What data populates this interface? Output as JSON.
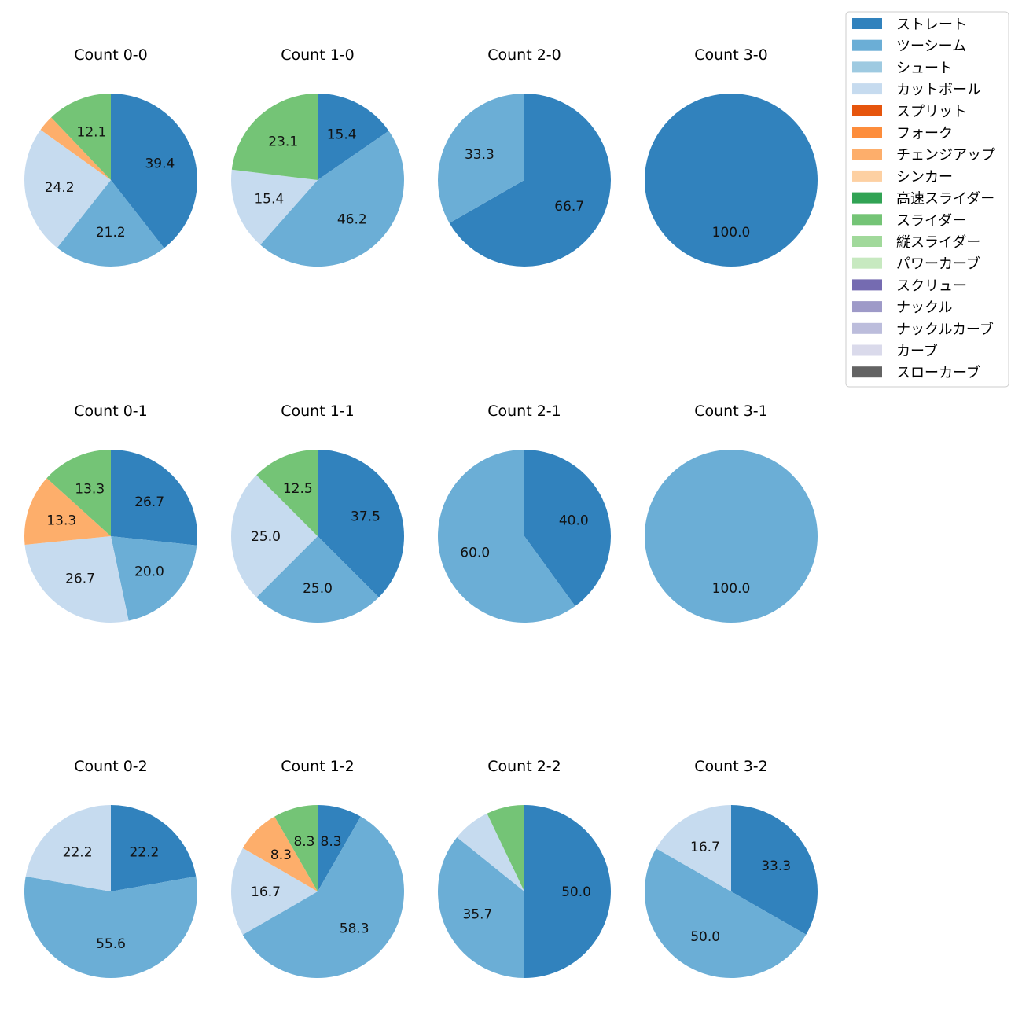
{
  "chart_data": {
    "type": "pie",
    "legend": {
      "placement": "top-right",
      "entries": [
        {
          "name": "ストレート",
          "color": "#3182bd"
        },
        {
          "name": "ツーシーム",
          "color": "#6baed6"
        },
        {
          "name": "シュート",
          "color": "#9ecae1"
        },
        {
          "name": "カットボール",
          "color": "#c6dbef"
        },
        {
          "name": "スプリット",
          "color": "#e6550d"
        },
        {
          "name": "フォーク",
          "color": "#fd8d3c"
        },
        {
          "name": "チェンジアップ",
          "color": "#fdae6b"
        },
        {
          "name": "シンカー",
          "color": "#fdd0a2"
        },
        {
          "name": "高速スライダー",
          "color": "#31a354"
        },
        {
          "name": "スライダー",
          "color": "#74c476"
        },
        {
          "name": "縦スライダー",
          "color": "#a1d99b"
        },
        {
          "name": "パワーカーブ",
          "color": "#c7e9c0"
        },
        {
          "name": "スクリュー",
          "color": "#756bb1"
        },
        {
          "name": "ナックル",
          "color": "#9e9ac8"
        },
        {
          "name": "ナックルカーブ",
          "color": "#bcbddc"
        },
        {
          "name": "カーブ",
          "color": "#dadaeb"
        },
        {
          "name": "スローカーブ",
          "color": "#636363"
        }
      ]
    },
    "pies": [
      {
        "title": "Count 0-0",
        "slices": [
          {
            "name": "ストレート",
            "value": 39.4,
            "label": "39.4"
          },
          {
            "name": "ツーシーム",
            "value": 21.2,
            "label": "21.2"
          },
          {
            "name": "カットボール",
            "value": 24.2,
            "label": "24.2"
          },
          {
            "name": "チェンジアップ",
            "value": 3.0,
            "label": ""
          },
          {
            "name": "スライダー",
            "value": 12.1,
            "label": "12.1"
          }
        ]
      },
      {
        "title": "Count 1-0",
        "slices": [
          {
            "name": "ストレート",
            "value": 15.4,
            "label": "15.4"
          },
          {
            "name": "ツーシーム",
            "value": 46.2,
            "label": "46.2"
          },
          {
            "name": "カットボール",
            "value": 15.4,
            "label": "15.4"
          },
          {
            "name": "スライダー",
            "value": 23.1,
            "label": "23.1"
          }
        ]
      },
      {
        "title": "Count 2-0",
        "slices": [
          {
            "name": "ストレート",
            "value": 66.7,
            "label": "66.7"
          },
          {
            "name": "ツーシーム",
            "value": 33.3,
            "label": "33.3"
          }
        ]
      },
      {
        "title": "Count 3-0",
        "slices": [
          {
            "name": "ストレート",
            "value": 100.0,
            "label": "100.0"
          }
        ]
      },
      {
        "title": "Count 0-1",
        "slices": [
          {
            "name": "ストレート",
            "value": 26.7,
            "label": "26.7"
          },
          {
            "name": "ツーシーム",
            "value": 20.0,
            "label": "20.0"
          },
          {
            "name": "カットボール",
            "value": 26.7,
            "label": "26.7"
          },
          {
            "name": "チェンジアップ",
            "value": 13.3,
            "label": "13.3"
          },
          {
            "name": "スライダー",
            "value": 13.3,
            "label": "13.3"
          }
        ]
      },
      {
        "title": "Count 1-1",
        "slices": [
          {
            "name": "ストレート",
            "value": 37.5,
            "label": "37.5"
          },
          {
            "name": "ツーシーム",
            "value": 25.0,
            "label": "25.0"
          },
          {
            "name": "カットボール",
            "value": 25.0,
            "label": "25.0"
          },
          {
            "name": "スライダー",
            "value": 12.5,
            "label": "12.5"
          }
        ]
      },
      {
        "title": "Count 2-1",
        "slices": [
          {
            "name": "ストレート",
            "value": 40.0,
            "label": "40.0"
          },
          {
            "name": "ツーシーム",
            "value": 60.0,
            "label": "60.0"
          }
        ]
      },
      {
        "title": "Count 3-1",
        "slices": [
          {
            "name": "ツーシーム",
            "value": 100.0,
            "label": "100.0"
          }
        ]
      },
      {
        "title": "Count 0-2",
        "slices": [
          {
            "name": "ストレート",
            "value": 22.2,
            "label": "22.2"
          },
          {
            "name": "ツーシーム",
            "value": 55.6,
            "label": "55.6"
          },
          {
            "name": "カットボール",
            "value": 22.2,
            "label": "22.2"
          }
        ]
      },
      {
        "title": "Count 1-2",
        "slices": [
          {
            "name": "ストレート",
            "value": 8.3,
            "label": "8.3"
          },
          {
            "name": "ツーシーム",
            "value": 58.3,
            "label": "58.3"
          },
          {
            "name": "カットボール",
            "value": 16.7,
            "label": "16.7"
          },
          {
            "name": "チェンジアップ",
            "value": 8.3,
            "label": "8.3"
          },
          {
            "name": "スライダー",
            "value": 8.3,
            "label": "8.3"
          }
        ]
      },
      {
        "title": "Count 2-2",
        "slices": [
          {
            "name": "ストレート",
            "value": 50.0,
            "label": "50.0"
          },
          {
            "name": "ツーシーム",
            "value": 35.7,
            "label": "35.7"
          },
          {
            "name": "カットボール",
            "value": 7.1,
            "label": ""
          },
          {
            "name": "スライダー",
            "value": 7.1,
            "label": ""
          }
        ]
      },
      {
        "title": "Count 3-2",
        "slices": [
          {
            "name": "ストレート",
            "value": 33.3,
            "label": "33.3"
          },
          {
            "name": "ツーシーム",
            "value": 50.0,
            "label": "50.0"
          },
          {
            "name": "カットボール",
            "value": 16.7,
            "label": "16.7"
          }
        ]
      }
    ]
  }
}
